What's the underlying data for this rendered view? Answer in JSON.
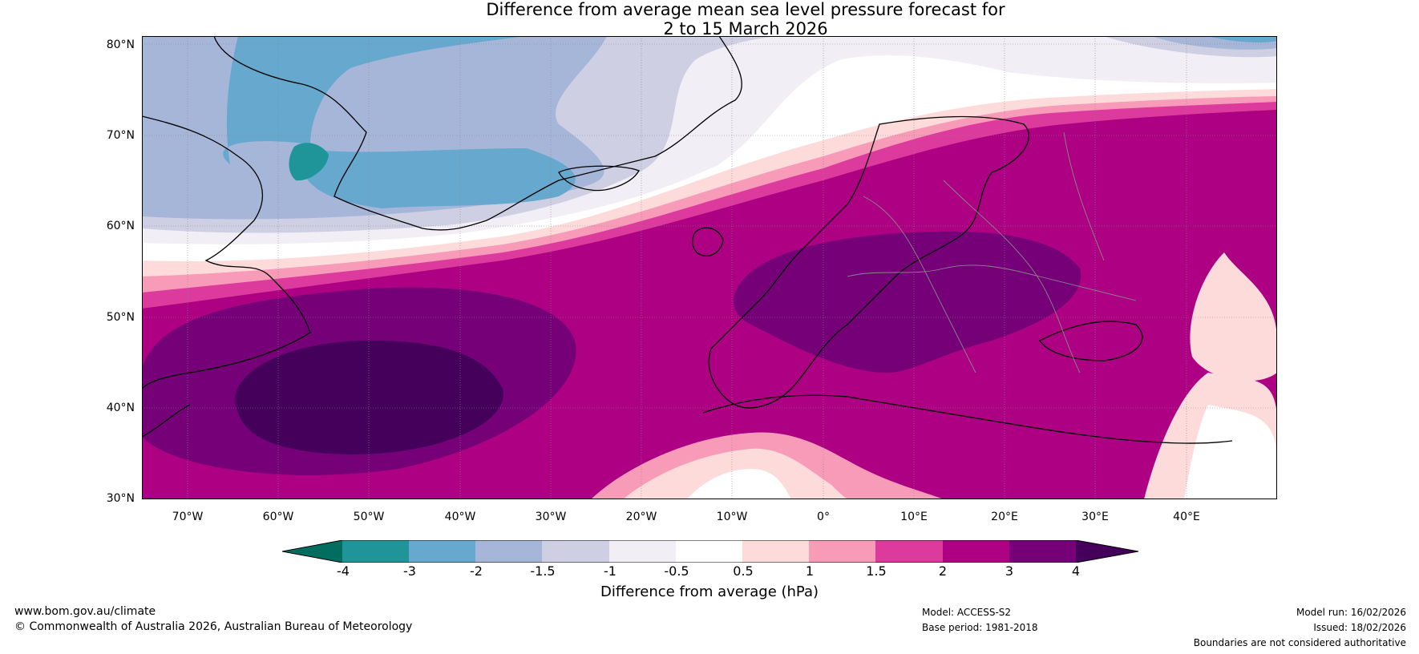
{
  "title": {
    "line1": "Difference from average mean sea level pressure forecast for",
    "line2": "2 to 15 March 2026"
  },
  "map": {
    "lat_ticks": [
      "80°N",
      "70°N",
      "60°N",
      "50°N",
      "40°N",
      "30°N"
    ],
    "lon_ticks": [
      "70°W",
      "60°W",
      "50°W",
      "40°W",
      "30°W",
      "20°W",
      "10°W",
      "0°",
      "10°E",
      "20°E",
      "30°E",
      "40°E"
    ],
    "extent": {
      "lon_min": -75,
      "lon_max": 50,
      "lat_min": 30,
      "lat_max": 81
    }
  },
  "colorbar": {
    "label": "Difference from average (hPa)",
    "ticks": [
      "-4",
      "-3",
      "-2",
      "-1.5",
      "-1",
      "-0.5",
      "0.5",
      "1",
      "1.5",
      "2",
      "3",
      "4"
    ],
    "colors": {
      "below_min": "#006d5f",
      "bins": [
        "#1f9499",
        "#67a8cf",
        "#a6b6d9",
        "#cfcfe3",
        "#f2eef5",
        "#ffffff",
        "#fddbdb",
        "#f79bb8",
        "#dc3a9c",
        "#ad0082",
        "#750078"
      ],
      "above_max": "#45005c"
    }
  },
  "footer": {
    "website": "www.bom.gov.au/climate",
    "copyright": "© Commonwealth of Australia 2026, Australian Bureau of Meteorology",
    "model": "Model: ACCESS-S2",
    "base_period": "Base period: 1981-2018",
    "model_run": "Model run: 16/02/2026",
    "issued": "Issued: 18/02/2026",
    "boundaries": "Boundaries are not considered authoritative"
  }
}
